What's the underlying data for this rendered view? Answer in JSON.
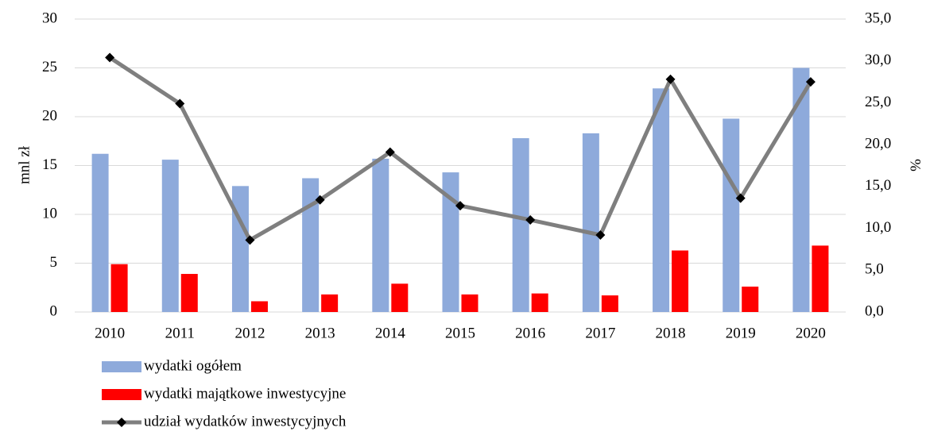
{
  "chart_data": {
    "type": "bar-line",
    "categories": [
      "2010",
      "2011",
      "2012",
      "2013",
      "2014",
      "2015",
      "2016",
      "2017",
      "2018",
      "2019",
      "2020"
    ],
    "series": [
      {
        "name": "wydatki ogółem",
        "color": "#8eaadb",
        "type": "bar",
        "values": [
          16.2,
          15.6,
          12.9,
          13.7,
          15.7,
          14.3,
          17.8,
          18.3,
          22.9,
          19.8,
          25.0
        ]
      },
      {
        "name": "wydatki majątkowe inwestycyjne",
        "color": "#ff0000",
        "type": "bar",
        "values": [
          4.9,
          3.9,
          1.1,
          1.8,
          2.9,
          1.8,
          1.9,
          1.7,
          6.3,
          2.6,
          6.8
        ]
      },
      {
        "name": "udział wydatków inwestycyjnych",
        "color": "#7f7f7f",
        "type": "line",
        "axis": "y2",
        "values": [
          30.4,
          24.9,
          8.6,
          13.4,
          19.1,
          12.7,
          11.0,
          9.2,
          27.8,
          13.6,
          27.5
        ]
      }
    ],
    "y_label": "mnl zł",
    "y2_label": "%",
    "ylim": [
      0,
      30
    ],
    "yticks": [
      0,
      5,
      10,
      15,
      20,
      25,
      30
    ],
    "y2lim": [
      0,
      35
    ],
    "y2ticks": [
      {
        "value": 0,
        "label": "0,0"
      },
      {
        "value": 5,
        "label": "5,0"
      },
      {
        "value": 10,
        "label": "10,0"
      },
      {
        "value": 15,
        "label": "15,0"
      },
      {
        "value": 20,
        "label": "20,0"
      },
      {
        "value": 25,
        "label": "25,0"
      },
      {
        "value": 30,
        "label": "30,0"
      },
      {
        "value": 35,
        "label": "35,0"
      }
    ],
    "grid": true,
    "legend": "bottom-left"
  }
}
